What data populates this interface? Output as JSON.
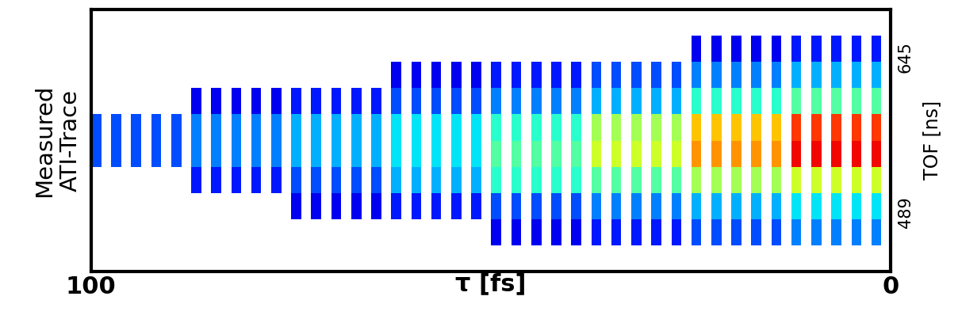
{
  "chart_data": {
    "type": "heatmap",
    "xlabel": "τ [fs]",
    "ylabel": "TOF [ns]",
    "annotations": [
      "Measured\nATI-Trace"
    ],
    "xlim": [
      100,
      0
    ],
    "xticks": [
      100,
      0
    ],
    "ylim": [
      430,
      693
    ],
    "yticks": [
      489,
      645
    ],
    "clim": [
      0,
      1
    ],
    "grid": false,
    "z": [
      [
        0,
        0,
        0,
        0,
        0,
        0,
        0,
        0,
        0,
        0,
        0,
        0,
        0,
        0,
        0,
        0,
        0,
        0,
        0,
        0,
        0,
        0,
        0,
        0,
        0,
        0,
        0,
        0,
        0,
        0,
        0,
        0,
        0,
        0,
        0,
        0,
        0,
        0,
        0,
        0,
        0,
        0,
        0,
        0,
        0,
        0,
        0,
        0,
        0,
        0,
        0,
        0,
        0,
        0,
        0,
        0,
        0,
        0,
        0,
        0,
        0,
        0,
        0,
        0,
        0,
        0,
        0,
        0,
        0,
        0,
        0,
        0,
        0,
        0,
        0,
        0,
        0,
        0,
        0,
        0
      ],
      [
        0,
        0,
        0,
        0,
        0,
        0,
        0,
        0,
        0,
        0,
        0,
        0,
        0,
        0,
        0,
        0,
        0,
        0,
        0,
        0,
        0,
        0,
        0,
        0,
        0,
        0,
        0,
        0,
        0,
        0,
        0,
        0,
        0,
        0,
        0,
        0,
        0,
        0,
        0,
        0,
        0.1,
        0,
        0.1,
        0,
        0.1,
        0,
        0.1,
        0,
        0.1,
        0,
        0.15,
        0,
        0.15,
        0,
        0.15,
        0,
        0.15,
        0,
        0.15,
        0,
        0.2,
        0,
        0.2,
        0,
        0.2,
        0,
        0.2,
        0,
        0.2,
        0,
        0.25,
        0,
        0.25,
        0,
        0.25,
        0,
        0.25,
        0,
        0.25,
        0
      ],
      [
        0,
        0,
        0,
        0,
        0,
        0,
        0,
        0,
        0,
        0,
        0,
        0,
        0,
        0,
        0,
        0,
        0,
        0,
        0,
        0,
        0.1,
        0,
        0.1,
        0,
        0.1,
        0,
        0.1,
        0,
        0.1,
        0,
        0.15,
        0,
        0.15,
        0,
        0.15,
        0,
        0.15,
        0,
        0.15,
        0,
        0.2,
        0,
        0.2,
        0,
        0.2,
        0,
        0.2,
        0,
        0.2,
        0,
        0.25,
        0,
        0.25,
        0,
        0.25,
        0,
        0.25,
        0,
        0.25,
        0,
        0.3,
        0,
        0.3,
        0,
        0.3,
        0,
        0.3,
        0,
        0.3,
        0,
        0.35,
        0,
        0.35,
        0,
        0.35,
        0,
        0.35,
        0,
        0.35,
        0
      ],
      [
        0,
        0,
        0,
        0,
        0,
        0,
        0,
        0,
        0,
        0,
        0.15,
        0,
        0.15,
        0,
        0.15,
        0,
        0.15,
        0,
        0.15,
        0,
        0.2,
        0,
        0.2,
        0,
        0.2,
        0,
        0.2,
        0,
        0.2,
        0,
        0.3,
        0,
        0.3,
        0,
        0.3,
        0,
        0.3,
        0,
        0.3,
        0,
        0.4,
        0,
        0.4,
        0,
        0.4,
        0,
        0.4,
        0,
        0.4,
        0,
        0.45,
        0,
        0.45,
        0,
        0.45,
        0,
        0.45,
        0,
        0.45,
        0,
        0.55,
        0,
        0.55,
        0,
        0.55,
        0,
        0.55,
        0,
        0.55,
        0,
        0.6,
        0,
        0.6,
        0,
        0.6,
        0,
        0.6,
        0,
        0.6,
        0
      ],
      [
        0.2,
        0,
        0.2,
        0,
        0.2,
        0,
        0.2,
        0,
        0.2,
        0,
        0.25,
        0,
        0.25,
        0,
        0.25,
        0,
        0.25,
        0,
        0.25,
        0,
        0.3,
        0,
        0.3,
        0,
        0.3,
        0,
        0.3,
        0,
        0.3,
        0,
        0.35,
        0,
        0.35,
        0,
        0.35,
        0,
        0.35,
        0,
        0.35,
        0,
        0.45,
        0,
        0.45,
        0,
        0.45,
        0,
        0.45,
        0,
        0.45,
        0,
        0.6,
        0,
        0.6,
        0,
        0.6,
        0,
        0.6,
        0,
        0.6,
        0,
        0.75,
        0,
        0.75,
        0,
        0.75,
        0,
        0.75,
        0,
        0.75,
        0,
        0.9,
        0,
        0.9,
        0,
        0.9,
        0,
        0.9,
        0,
        0.9,
        0
      ],
      [
        0.2,
        0,
        0.2,
        0,
        0.2,
        0,
        0.2,
        0,
        0.2,
        0,
        0.25,
        0,
        0.25,
        0,
        0.25,
        0,
        0.25,
        0,
        0.25,
        0,
        0.3,
        0,
        0.3,
        0,
        0.3,
        0,
        0.3,
        0,
        0.3,
        0,
        0.35,
        0,
        0.35,
        0,
        0.35,
        0,
        0.35,
        0,
        0.35,
        0,
        0.4,
        0,
        0.4,
        0,
        0.4,
        0,
        0.4,
        0,
        0.4,
        0,
        0.55,
        0,
        0.55,
        0,
        0.55,
        0,
        0.55,
        0,
        0.55,
        0,
        0.7,
        0,
        0.7,
        0,
        0.7,
        0,
        0.7,
        0,
        0.7,
        0,
        0.85,
        0,
        0.85,
        0,
        0.85,
        0,
        0.85,
        0,
        0.85,
        0
      ],
      [
        0,
        0,
        0,
        0,
        0,
        0,
        0,
        0,
        0,
        0,
        0.1,
        0,
        0.1,
        0,
        0.1,
        0,
        0.1,
        0,
        0.1,
        0,
        0.15,
        0,
        0.15,
        0,
        0.15,
        0,
        0.15,
        0,
        0.15,
        0,
        0.2,
        0,
        0.2,
        0,
        0.2,
        0,
        0.2,
        0,
        0.2,
        0,
        0.25,
        0,
        0.25,
        0,
        0.25,
        0,
        0.25,
        0,
        0.25,
        0,
        0.3,
        0,
        0.3,
        0,
        0.3,
        0,
        0.3,
        0,
        0.3,
        0,
        0.4,
        0,
        0.4,
        0,
        0.4,
        0,
        0.4,
        0,
        0.4,
        0,
        0.45,
        0,
        0.45,
        0,
        0.45,
        0,
        0.45,
        0,
        0.45,
        0
      ],
      [
        0,
        0,
        0,
        0,
        0,
        0,
        0,
        0,
        0,
        0,
        0,
        0,
        0,
        0,
        0,
        0,
        0,
        0,
        0,
        0,
        0,
        0,
        0,
        0,
        0,
        0,
        0,
        0,
        0,
        0,
        0.1,
        0,
        0.1,
        0,
        0.1,
        0,
        0.1,
        0,
        0.1,
        0,
        0.15,
        0,
        0.15,
        0,
        0.15,
        0,
        0.15,
        0,
        0.15,
        0,
        0.2,
        0,
        0.2,
        0,
        0.2,
        0,
        0.2,
        0,
        0.2,
        0,
        0.25,
        0,
        0.25,
        0,
        0.25,
        0,
        0.25,
        0,
        0.25,
        0,
        0.3,
        0,
        0.3,
        0,
        0.3,
        0,
        0.3,
        0,
        0.3,
        0
      ],
      [
        0,
        0,
        0,
        0,
        0,
        0,
        0,
        0,
        0,
        0,
        0,
        0,
        0,
        0,
        0,
        0,
        0,
        0,
        0,
        0,
        0,
        0,
        0,
        0,
        0,
        0,
        0,
        0,
        0,
        0,
        0,
        0,
        0,
        0,
        0,
        0,
        0,
        0,
        0,
        0,
        0,
        0,
        0,
        0,
        0,
        0,
        0,
        0,
        0,
        0,
        0,
        0,
        0,
        0,
        0,
        0,
        0,
        0,
        0,
        0,
        0.1,
        0,
        0.1,
        0,
        0.1,
        0,
        0.1,
        0,
        0.1,
        0,
        0.15,
        0,
        0.15,
        0,
        0.15,
        0,
        0.15,
        0,
        0.15,
        0
      ],
      [
        0,
        0,
        0,
        0,
        0,
        0,
        0,
        0,
        0,
        0,
        0,
        0,
        0,
        0,
        0,
        0,
        0,
        0,
        0,
        0,
        0,
        0,
        0,
        0,
        0,
        0,
        0,
        0,
        0,
        0,
        0,
        0,
        0,
        0,
        0,
        0,
        0,
        0,
        0,
        0,
        0,
        0,
        0,
        0,
        0,
        0,
        0,
        0,
        0,
        0,
        0,
        0,
        0,
        0,
        0,
        0,
        0,
        0,
        0,
        0,
        0,
        0,
        0,
        0,
        0,
        0,
        0,
        0,
        0,
        0,
        0,
        0,
        0,
        0,
        0,
        0,
        0,
        0,
        0,
        0
      ]
    ]
  }
}
